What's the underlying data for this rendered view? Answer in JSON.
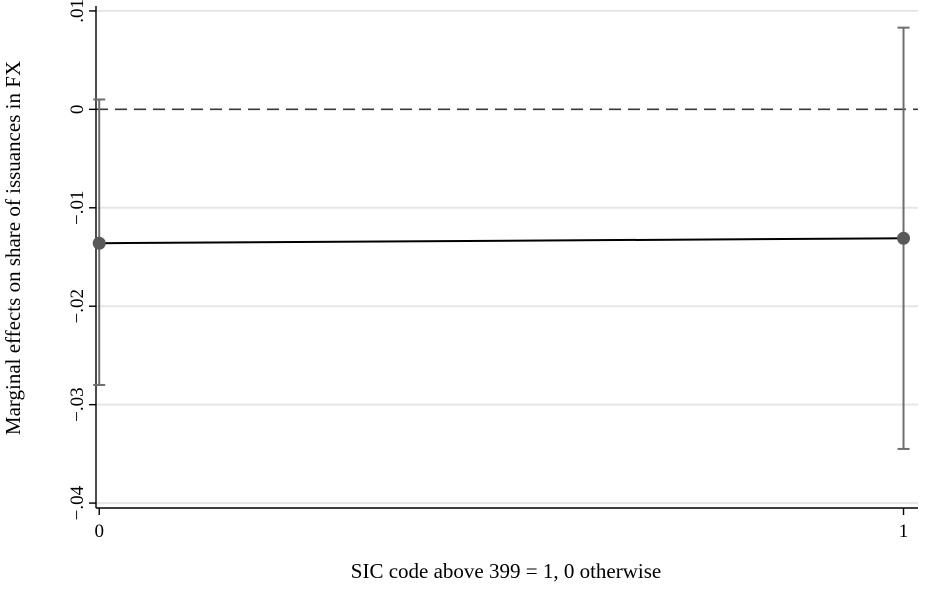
{
  "chart_data": {
    "type": "scatter",
    "title": "",
    "xlabel": "SIC code above 399 = 1, 0 otherwise",
    "ylabel": "Marginal effects on share of issuances in FX",
    "x": [
      0,
      1
    ],
    "x_ticks": [
      "0",
      "1"
    ],
    "y_ticks": [
      ".01",
      "0",
      "-.01",
      "-.02",
      "-.03",
      "-.04"
    ],
    "y_tick_values": [
      0.01,
      0,
      -0.01,
      -0.02,
      -0.03,
      -0.04
    ],
    "xlim": [
      -0.004,
      1.018
    ],
    "ylim": [
      -0.0405,
      0.0105
    ],
    "series": [
      {
        "values": [
          -0.0136,
          -0.0131
        ],
        "ci_lower": [
          -0.028,
          -0.0345
        ],
        "ci_upper": [
          0.001,
          0.0083
        ]
      }
    ],
    "reference_line": {
      "y": 0,
      "style": "dashed"
    },
    "grid": true,
    "colors": {
      "line": "#000000",
      "marker": "#595959",
      "ci": "#6e6e6e",
      "grid": "#e6e6e6"
    }
  }
}
